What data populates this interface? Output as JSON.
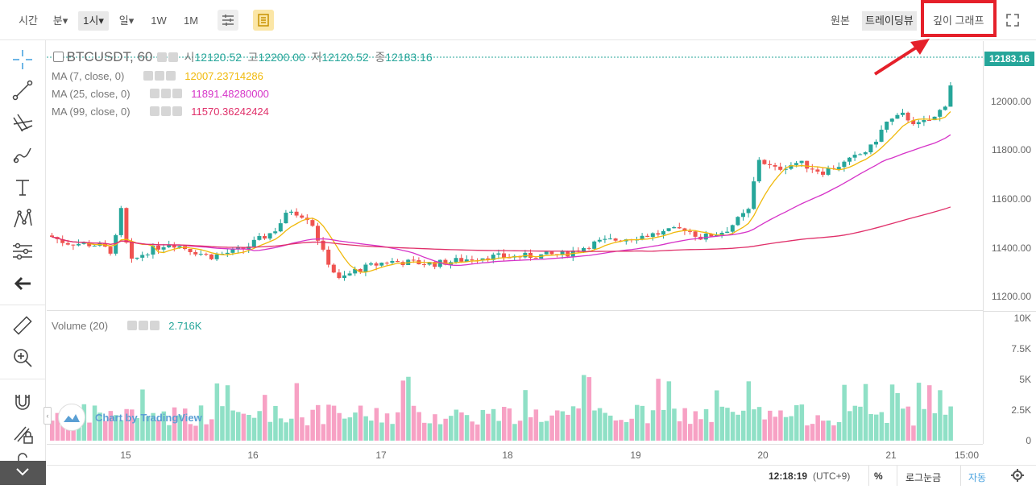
{
  "topbar": {
    "left_items": [
      {
        "label": "시간"
      },
      {
        "label": "분▾"
      },
      {
        "label": "1시▾"
      },
      {
        "label": "일▾"
      },
      {
        "label": "1W"
      },
      {
        "label": "1M"
      }
    ],
    "right_items": [
      {
        "label": "원본"
      },
      {
        "label": "트레이딩뷰"
      },
      {
        "label": "깊이 그래프"
      }
    ]
  },
  "legend": {
    "symbol": "BTCUSDT, 60",
    "ohlc": [
      {
        "label": "시",
        "value": "12120.52"
      },
      {
        "label": "고",
        "value": "12200.00"
      },
      {
        "label": "저",
        "value": "12120.52"
      },
      {
        "label": "종",
        "value": "12183.16"
      }
    ],
    "studies": [
      {
        "name": "MA (7, close, 0)",
        "value": "12007.23714286",
        "color": "#f0b90b"
      },
      {
        "name": "MA (25, close, 0)",
        "value": "11891.48280000",
        "color": "#d633c8"
      },
      {
        "name": "MA (99, close, 0)",
        "value": "11570.36242424",
        "color": "#e0306a"
      }
    ],
    "volume": {
      "name": "Volume (20)",
      "value": "2.716K"
    }
  },
  "price_tag": "12183.16",
  "yaxis_price": [
    "12000.00",
    "11800.00",
    "11600.00",
    "11400.00",
    "11200.00"
  ],
  "yaxis_volume": [
    "10K",
    "7.5K",
    "5K",
    "2.5K",
    "0"
  ],
  "xaxis": [
    "15",
    "16",
    "17",
    "18",
    "19",
    "20",
    "21",
    "15:00"
  ],
  "watermark": "Chart by TradingView",
  "status": {
    "time": "12:18:19",
    "tz": "(UTC+9)",
    "percent": "%",
    "log": "로그눈금",
    "auto": "자동"
  },
  "colors": {
    "up": "#26a69a",
    "down": "#ef5350",
    "up_vol": "#8fe0c6",
    "down_vol": "#f7a1c4",
    "ma7": "#f0b90b",
    "ma25": "#d633c8",
    "ma99": "#e0306a",
    "annotation": "#e5202a"
  },
  "chart_data": {
    "type": "candlestick",
    "ylim": [
      11150,
      12250
    ],
    "volume_ylim": [
      0,
      10000
    ],
    "last_close": 12183.16
  }
}
